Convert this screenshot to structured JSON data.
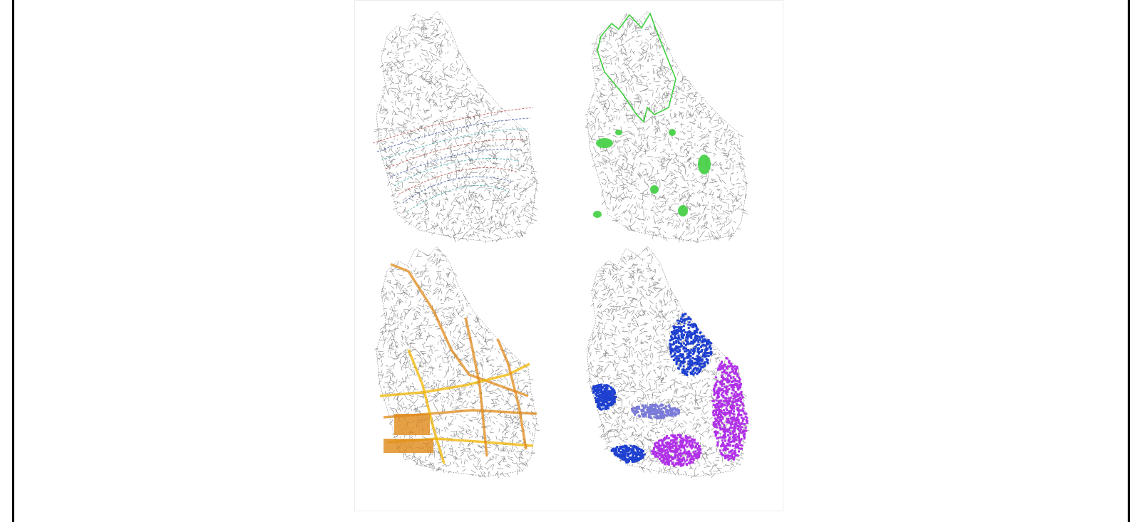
{
  "figure": {
    "panels": [
      {
        "id": "base-network",
        "overlay": "street-centerlines",
        "overlay_colors": [
          "#b03a2e",
          "#2f4fa0",
          "#2aa0a0"
        ]
      },
      {
        "id": "green-space",
        "overlay": "boundary-and-parks",
        "overlay_colors": [
          "#3fcf3f"
        ]
      },
      {
        "id": "main-corridors",
        "overlay": "road-corridors",
        "overlay_colors": [
          "#e08a1a",
          "#f0b400"
        ]
      },
      {
        "id": "districts",
        "overlay": "clusters",
        "overlay_colors": [
          "#1e40d0",
          "#b030e8",
          "#7a7ad8"
        ]
      }
    ],
    "colors": {
      "base_network": "#6f6f6f",
      "frame": "#000000",
      "background": "#ffffff"
    }
  }
}
